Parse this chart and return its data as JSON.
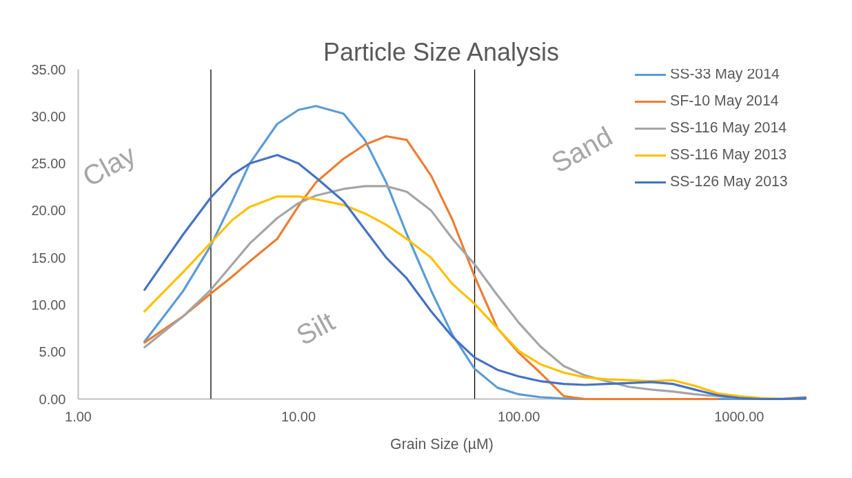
{
  "chart_data": {
    "type": "line",
    "title": "Particle Size Analysis",
    "xlabel": "Grain Size (µM)",
    "x": [
      2,
      3,
      4,
      5,
      6,
      8,
      10,
      12,
      16,
      20,
      25,
      31,
      40,
      50,
      63,
      80,
      100,
      125,
      160,
      200,
      250,
      315,
      400,
      500,
      630,
      800,
      1000,
      1250,
      1600,
      2000
    ],
    "series": [
      {
        "name": "SS-33 May 2014",
        "color": "#5b9bd5",
        "values": [
          6.1,
          11.5,
          16.3,
          21,
          25,
          29.2,
          30.7,
          31.1,
          30.3,
          27.5,
          23,
          17.5,
          11.5,
          6.8,
          3.2,
          1.2,
          0.5,
          0.2,
          0.05,
          0,
          0,
          0,
          0,
          0,
          0,
          0,
          0,
          0,
          0,
          0
        ]
      },
      {
        "name": "SF-10 May 2014",
        "color": "#ed7d31",
        "values": [
          6.0,
          8.8,
          11.2,
          13.0,
          14.6,
          17.0,
          20.5,
          23.0,
          25.5,
          27.0,
          27.9,
          27.5,
          23.7,
          19.0,
          13.0,
          7.5,
          4.9,
          2.8,
          0.3,
          0,
          0,
          0,
          0,
          0,
          0,
          0,
          null,
          null,
          null,
          null
        ]
      },
      {
        "name": "SS-116 May 2014",
        "color": "#a5a5a5",
        "values": [
          5.5,
          8.8,
          11.6,
          14.3,
          16.5,
          19.2,
          20.8,
          21.6,
          22.3,
          22.6,
          22.6,
          22.0,
          20.0,
          17.0,
          14.3,
          11.0,
          8.1,
          5.6,
          3.5,
          2.5,
          1.9,
          1.3,
          1.0,
          0.8,
          0.5,
          0.3,
          0.1,
          0,
          0.05,
          0.2
        ]
      },
      {
        "name": "SS-116 May 2013",
        "color": "#ffc000",
        "values": [
          9.3,
          13.5,
          16.6,
          19.0,
          20.4,
          21.5,
          21.5,
          21.2,
          20.6,
          19.7,
          18.5,
          17.0,
          15.0,
          12.2,
          10.1,
          7.5,
          5.1,
          3.7,
          2.8,
          2.3,
          2.1,
          2.0,
          1.9,
          2.0,
          1.4,
          0.6,
          0.3,
          0.1,
          0,
          0.1
        ]
      },
      {
        "name": "SS-126 May 2013",
        "color": "#4472c4",
        "values": [
          11.6,
          17.5,
          21.4,
          23.8,
          25.0,
          25.9,
          25.0,
          23.5,
          21.0,
          18.0,
          15.0,
          12.8,
          9.3,
          6.6,
          4.4,
          3.1,
          2.4,
          1.9,
          1.6,
          1.5,
          1.6,
          1.7,
          1.8,
          1.6,
          1.0,
          0.4,
          0.1,
          0,
          0,
          0.1
        ]
      }
    ],
    "log": "x",
    "xlim": [
      1,
      2000
    ],
    "xticks": [
      {
        "value": 1,
        "label": "1.00"
      },
      {
        "value": 10,
        "label": "10.00"
      },
      {
        "value": 100,
        "label": "100.00"
      },
      {
        "value": 1000,
        "label": "1000.00"
      }
    ],
    "ylim": [
      0,
      35
    ],
    "yticks": [
      {
        "value": 0,
        "label": "0.00"
      },
      {
        "value": 5,
        "label": "5.00"
      },
      {
        "value": 10,
        "label": "10.00"
      },
      {
        "value": 15,
        "label": "15.00"
      },
      {
        "value": 20,
        "label": "20.00"
      },
      {
        "value": 25,
        "label": "25.00"
      },
      {
        "value": 30,
        "label": "30.00"
      },
      {
        "value": 35,
        "label": "35.00"
      }
    ],
    "ref_lines": [
      {
        "axis": "x",
        "value": 4,
        "label": null,
        "color": "#000000"
      },
      {
        "axis": "x",
        "value": 63,
        "label": null,
        "color": "#000000"
      }
    ],
    "annotations": [
      "Clay",
      "Silt",
      "Sand"
    ],
    "grid": false,
    "legend": "top right",
    "marker": "none",
    "line_style": "solid"
  }
}
